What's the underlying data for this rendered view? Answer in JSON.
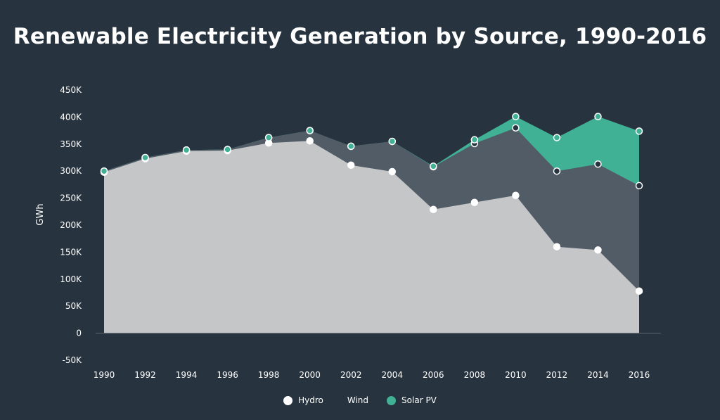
{
  "chart_data": {
    "type": "area",
    "title": "Renewable Electricity Generation by Source, 1990-2016",
    "xlabel": "",
    "ylabel": "GWh",
    "ylim": [
      -50000,
      450000
    ],
    "y_ticks": [
      -50000,
      0,
      50000,
      100000,
      150000,
      200000,
      250000,
      300000,
      350000,
      400000,
      450000
    ],
    "y_tick_labels": [
      "-50K",
      "0",
      "50K",
      "100K",
      "150K",
      "200K",
      "250K",
      "300K",
      "350K",
      "400K",
      "450K"
    ],
    "categories": [
      "1990",
      "1992",
      "1994",
      "1996",
      "1998",
      "2000",
      "2002",
      "2004",
      "2006",
      "2008",
      "2010",
      "2012",
      "2014",
      "2016"
    ],
    "stacked": true,
    "series": [
      {
        "name": "Hydro",
        "color": "#c4c6c8",
        "marker_fill": "#ffffff",
        "values": [
          298000,
          323000,
          337000,
          338000,
          352000,
          356000,
          311000,
          299000,
          229000,
          242000,
          255000,
          160000,
          154000,
          78000
        ]
      },
      {
        "name": "Wind",
        "color": "#525c66",
        "marker_fill": "#27343f",
        "values": [
          2000,
          2000,
          2000,
          2000,
          10000,
          19000,
          35000,
          56000,
          79000,
          109000,
          125000,
          140000,
          159000,
          195000
        ]
      },
      {
        "name": "Solar PV",
        "color": "#40b195",
        "marker_fill": "#40b195",
        "values": [
          0,
          0,
          0,
          0,
          0,
          0,
          0,
          0,
          1000,
          7000,
          21000,
          62000,
          88000,
          101000
        ]
      }
    ],
    "grid": false,
    "legend_position": "bottom-center"
  }
}
